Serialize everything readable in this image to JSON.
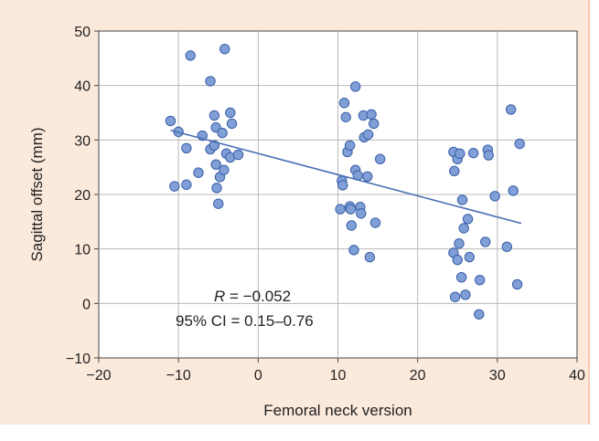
{
  "chart_data": {
    "type": "scatter",
    "xlabel": "Femoral neck version",
    "ylabel": "Sagittal offset (mm)",
    "xlim": [
      -20,
      40
    ],
    "ylim": [
      -10,
      50
    ],
    "xticks": [
      -20,
      -10,
      0,
      10,
      20,
      30,
      40
    ],
    "yticks": [
      -10,
      0,
      10,
      20,
      30,
      40,
      50
    ],
    "x_tick_labels": [
      "−20",
      "−10",
      "0",
      "10",
      "20",
      "30",
      "40"
    ],
    "y_tick_labels": [
      "−10",
      "0",
      "10",
      "20",
      "30",
      "40",
      "50"
    ],
    "grid": true,
    "legend": "none",
    "point_color": "#7f9fd6",
    "point_edge_color": "#3a5ea8",
    "line_color": "#4a6fb5",
    "trendline": {
      "x": [
        -11,
        33
      ],
      "y": [
        31.8,
        14.7
      ]
    },
    "annotations": {
      "r_label": "R",
      "r_value": " = −0.052",
      "ci": "95% CI = 0.15–0.76"
    },
    "points": [
      [
        -11,
        33.5
      ],
      [
        -10.5,
        21.5
      ],
      [
        -10,
        31.5
      ],
      [
        -9,
        28.5
      ],
      [
        -9,
        21.8
      ],
      [
        -8.5,
        45.5
      ],
      [
        -7.5,
        24
      ],
      [
        -7,
        30.8
      ],
      [
        -6,
        40.8
      ],
      [
        -6,
        28.3
      ],
      [
        -5.5,
        34.5
      ],
      [
        -5.5,
        29
      ],
      [
        -5.3,
        32.3
      ],
      [
        -5.3,
        25.5
      ],
      [
        -5.2,
        21.2
      ],
      [
        -5,
        18.3
      ],
      [
        -4.8,
        23.2
      ],
      [
        -4.5,
        31.3
      ],
      [
        -4.3,
        24.5
      ],
      [
        -4.2,
        46.7
      ],
      [
        -4,
        27.5
      ],
      [
        -3.5,
        26.8
      ],
      [
        -3.5,
        35
      ],
      [
        -3.3,
        33
      ],
      [
        -2.5,
        27.3
      ],
      [
        10.3,
        17.3
      ],
      [
        10.5,
        22.5
      ],
      [
        10.6,
        21.7
      ],
      [
        10.8,
        36.8
      ],
      [
        11,
        34.2
      ],
      [
        11.2,
        27.8
      ],
      [
        11.5,
        29
      ],
      [
        11.5,
        17.8
      ],
      [
        11.6,
        17.3
      ],
      [
        11.7,
        14.3
      ],
      [
        12,
        9.8
      ],
      [
        12.2,
        39.8
      ],
      [
        12.2,
        24.5
      ],
      [
        12.5,
        23.5
      ],
      [
        12.8,
        17.7
      ],
      [
        12.9,
        16.5
      ],
      [
        13.2,
        34.5
      ],
      [
        13.3,
        30.5
      ],
      [
        13.7,
        23.3
      ],
      [
        13.8,
        31
      ],
      [
        14,
        8.5
      ],
      [
        14.2,
        34.7
      ],
      [
        14.5,
        33
      ],
      [
        14.7,
        14.8
      ],
      [
        15.3,
        26.5
      ],
      [
        24.5,
        27.8
      ],
      [
        24.5,
        9.3
      ],
      [
        24.6,
        24.3
      ],
      [
        24.7,
        1.2
      ],
      [
        25,
        26.5
      ],
      [
        25,
        8
      ],
      [
        25.2,
        11
      ],
      [
        25.3,
        27.5
      ],
      [
        25.5,
        4.8
      ],
      [
        25.6,
        19
      ],
      [
        25.8,
        13.8
      ],
      [
        26,
        1.6
      ],
      [
        26.3,
        15.5
      ],
      [
        26.5,
        8.5
      ],
      [
        27,
        27.6
      ],
      [
        27.7,
        -2
      ],
      [
        27.8,
        4.3
      ],
      [
        28.5,
        11.3
      ],
      [
        28.8,
        28.2
      ],
      [
        28.9,
        27.2
      ],
      [
        29.7,
        19.7
      ],
      [
        31.2,
        10.4
      ],
      [
        31.7,
        35.6
      ],
      [
        32,
        20.7
      ],
      [
        32.5,
        3.5
      ],
      [
        32.8,
        29.3
      ]
    ]
  }
}
